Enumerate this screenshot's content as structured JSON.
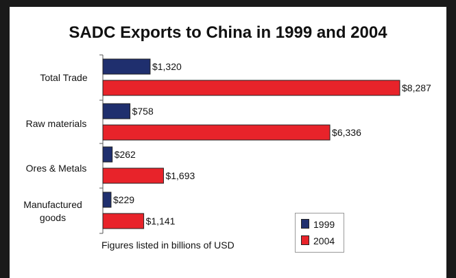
{
  "chart_data": {
    "type": "bar",
    "orientation": "horizontal",
    "title": "SADC Exports to China in 1999 and 2004",
    "categories": [
      "Total Trade",
      "Raw materials",
      "Ores & Metals",
      "Manufactured goods"
    ],
    "series": [
      {
        "name": "1999",
        "values": [
          1320,
          758,
          262,
          229
        ],
        "labels": [
          "$1,320",
          "$758",
          "$262",
          "$229"
        ],
        "color": "#1f2f6e"
      },
      {
        "name": "2004",
        "values": [
          8287,
          6336,
          1693,
          1141
        ],
        "labels": [
          "$8,287",
          "$6,336",
          "$1,693",
          "$1,141"
        ],
        "color": "#e8232a"
      }
    ],
    "xlim": [
      0,
      8287
    ],
    "grid": false,
    "legend_position": "bottom-right",
    "note": "Figures listed in billions of USD"
  }
}
